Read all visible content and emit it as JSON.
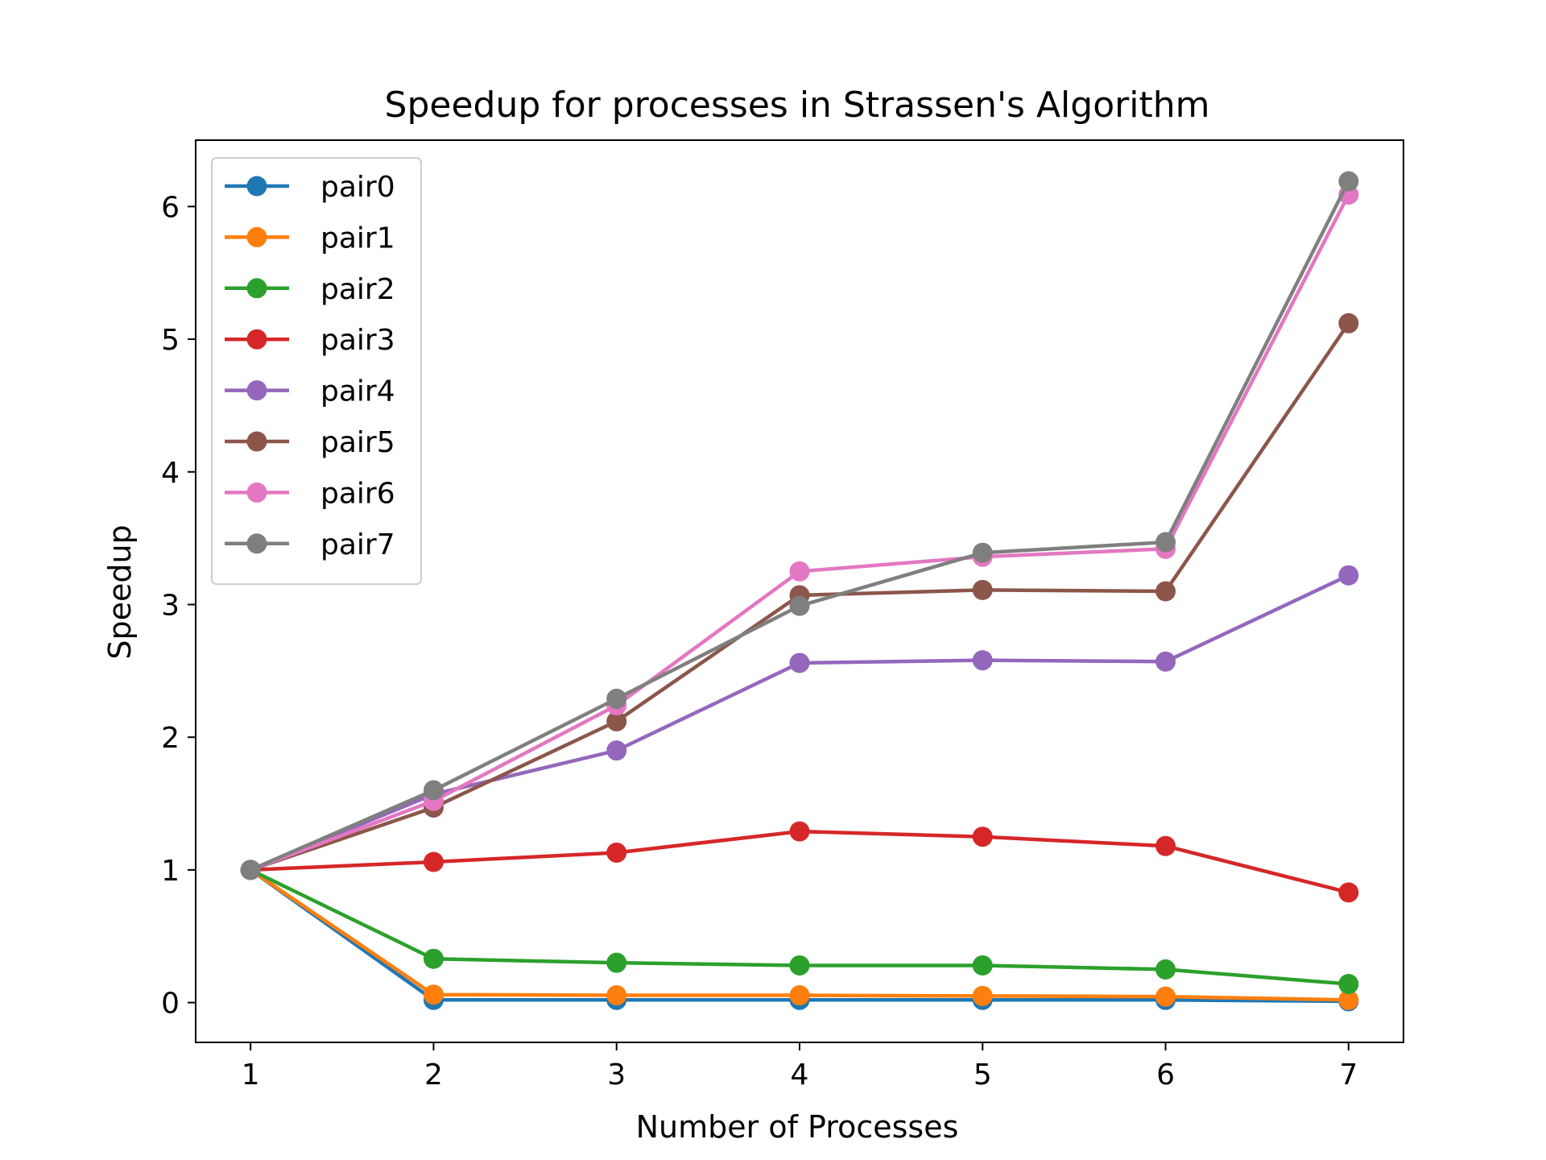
{
  "chart_data": {
    "type": "line",
    "title": "Speedup for processes in Strassen's Algorithm",
    "xlabel": "Number of Processes",
    "ylabel": "Speedup",
    "x": [
      1,
      2,
      3,
      4,
      5,
      6,
      7
    ],
    "xticks": [
      "1",
      "2",
      "3",
      "4",
      "5",
      "6",
      "7"
    ],
    "yticks": [
      "0",
      "1",
      "2",
      "3",
      "4",
      "5",
      "6"
    ],
    "xlim": [
      0.7,
      7.3
    ],
    "ylim": [
      -0.3,
      6.5
    ],
    "grid": false,
    "legend_position": "top-left",
    "series": [
      {
        "name": "pair0",
        "color": "#1f77b4",
        "values": [
          1.0,
          0.02,
          0.02,
          0.02,
          0.02,
          0.02,
          0.01
        ]
      },
      {
        "name": "pair1",
        "color": "#ff7f0e",
        "values": [
          1.0,
          0.06,
          0.055,
          0.055,
          0.05,
          0.045,
          0.02
        ]
      },
      {
        "name": "pair2",
        "color": "#2ca02c",
        "values": [
          1.0,
          0.33,
          0.3,
          0.28,
          0.28,
          0.25,
          0.14
        ]
      },
      {
        "name": "pair3",
        "color": "#d62728",
        "values": [
          1.0,
          1.06,
          1.13,
          1.29,
          1.25,
          1.18,
          0.83
        ]
      },
      {
        "name": "pair4",
        "color": "#9467bd",
        "values": [
          1.0,
          1.57,
          1.9,
          2.56,
          2.58,
          2.57,
          3.22
        ]
      },
      {
        "name": "pair5",
        "color": "#8c564b",
        "values": [
          1.0,
          1.47,
          2.12,
          3.07,
          3.11,
          3.1,
          5.12
        ]
      },
      {
        "name": "pair6",
        "color": "#e377c2",
        "values": [
          1.0,
          1.52,
          2.24,
          3.25,
          3.36,
          3.42,
          6.09
        ]
      },
      {
        "name": "pair7",
        "color": "#7f7f7f",
        "values": [
          1.0,
          1.6,
          2.29,
          2.99,
          3.39,
          3.47,
          6.19
        ]
      }
    ]
  }
}
